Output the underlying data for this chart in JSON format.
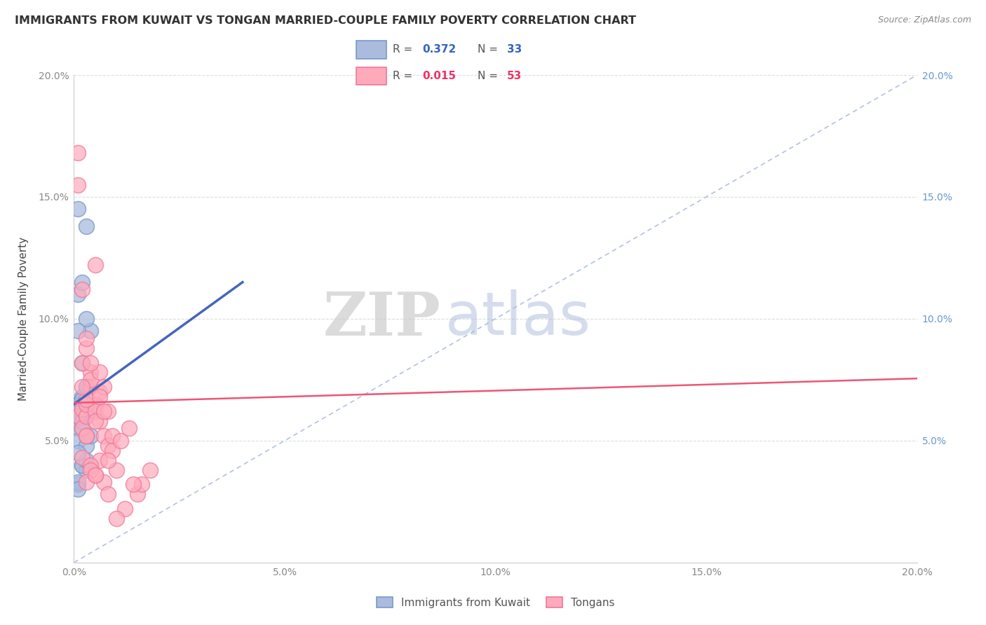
{
  "title": "IMMIGRANTS FROM KUWAIT VS TONGAN MARRIED-COUPLE FAMILY POVERTY CORRELATION CHART",
  "source": "Source: ZipAtlas.com",
  "ylabel": "Married-Couple Family Poverty",
  "xlim": [
    0.0,
    0.2
  ],
  "ylim": [
    0.0,
    0.2
  ],
  "blue_edge_color": "#7799CC",
  "blue_fill_color": "#AABBDD",
  "pink_edge_color": "#EE7799",
  "pink_fill_color": "#FFAABB",
  "blue_line_color": "#4466BB",
  "pink_line_color": "#EE5577",
  "diag_color": "#AABBDD",
  "blue_R": "0.372",
  "blue_N": "33",
  "pink_R": "0.015",
  "pink_N": "53",
  "legend_label_blue": "Immigrants from Kuwait",
  "legend_label_pink": "Tongans",
  "watermark_zip": "ZIP",
  "watermark_atlas": "atlas",
  "blue_x": [
    0.001,
    0.002,
    0.001,
    0.003,
    0.002,
    0.004,
    0.003,
    0.002,
    0.001,
    0.001,
    0.002,
    0.003,
    0.002,
    0.003,
    0.001,
    0.003,
    0.004,
    0.003,
    0.002,
    0.003,
    0.001,
    0.002,
    0.003,
    0.002,
    0.001,
    0.004,
    0.002,
    0.003,
    0.001,
    0.001,
    0.002,
    0.001,
    0.002
  ],
  "blue_y": [
    0.065,
    0.068,
    0.145,
    0.072,
    0.058,
    0.062,
    0.052,
    0.06,
    0.055,
    0.05,
    0.055,
    0.06,
    0.04,
    0.038,
    0.032,
    0.048,
    0.095,
    0.1,
    0.082,
    0.138,
    0.033,
    0.04,
    0.042,
    0.065,
    0.03,
    0.052,
    0.067,
    0.072,
    0.045,
    0.11,
    0.115,
    0.095,
    0.058
  ],
  "pink_x": [
    0.001,
    0.002,
    0.001,
    0.003,
    0.004,
    0.002,
    0.003,
    0.005,
    0.006,
    0.002,
    0.003,
    0.001,
    0.004,
    0.005,
    0.006,
    0.002,
    0.007,
    0.003,
    0.008,
    0.004,
    0.005,
    0.002,
    0.003,
    0.006,
    0.007,
    0.008,
    0.004,
    0.005,
    0.003,
    0.009,
    0.01,
    0.006,
    0.007,
    0.008,
    0.012,
    0.015,
    0.005,
    0.004,
    0.009,
    0.011,
    0.013,
    0.016,
    0.018,
    0.007,
    0.003,
    0.002,
    0.006,
    0.008,
    0.01,
    0.014,
    0.004,
    0.003,
    0.005
  ],
  "pink_y": [
    0.06,
    0.063,
    0.168,
    0.052,
    0.072,
    0.055,
    0.06,
    0.065,
    0.07,
    0.043,
    0.065,
    0.155,
    0.078,
    0.062,
    0.058,
    0.082,
    0.052,
    0.088,
    0.048,
    0.075,
    0.122,
    0.112,
    0.092,
    0.078,
    0.072,
    0.062,
    0.082,
    0.058,
    0.067,
    0.052,
    0.038,
    0.042,
    0.033,
    0.028,
    0.022,
    0.028,
    0.036,
    0.04,
    0.046,
    0.05,
    0.055,
    0.032,
    0.038,
    0.062,
    0.052,
    0.072,
    0.068,
    0.042,
    0.018,
    0.032,
    0.038,
    0.033,
    0.036
  ],
  "blue_trend_x0": 0.0,
  "blue_trend_y0": 0.065,
  "blue_trend_x1": 0.04,
  "blue_trend_y1": 0.115,
  "pink_trend_y": 0.0655,
  "pink_trend_slope": 0.05
}
